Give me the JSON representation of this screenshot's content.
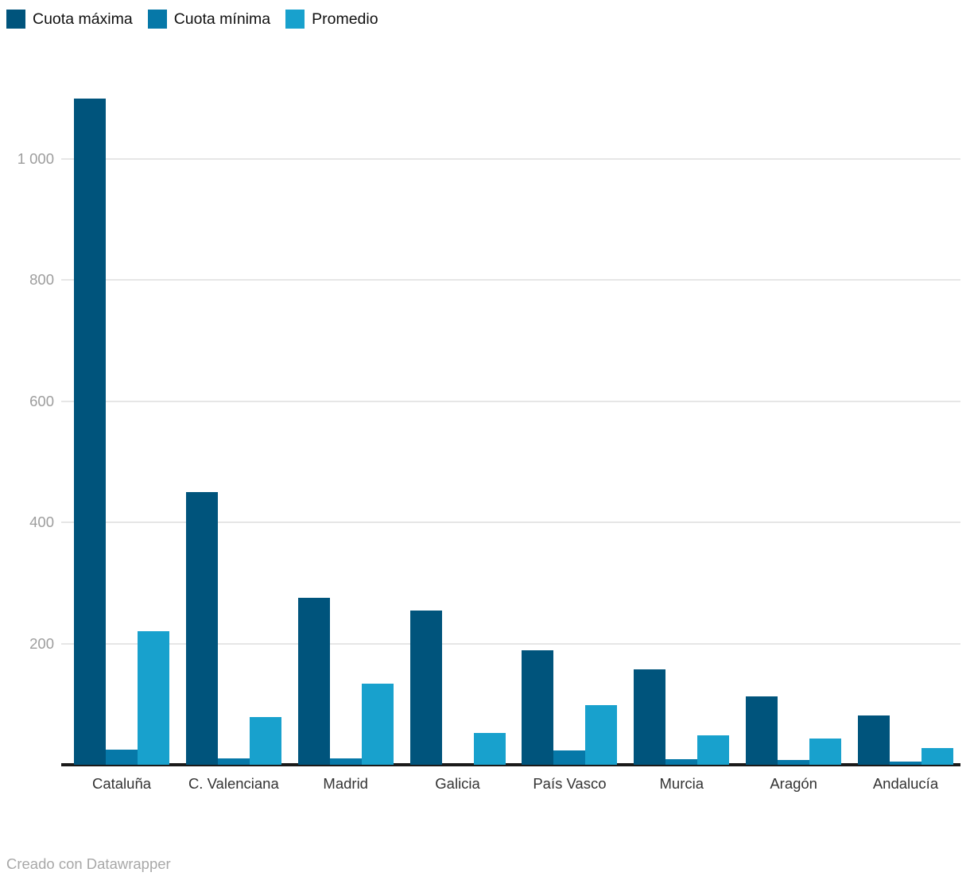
{
  "footer": {
    "credit": "Creado con Datawrapper"
  },
  "chart_data": {
    "type": "bar",
    "title": "",
    "categories": [
      "Cataluña",
      "C. Valenciana",
      "Madrid",
      "Galicia",
      "País Vasco",
      "Murcia",
      "Aragón",
      "Andalucía"
    ],
    "series": [
      {
        "name": "Cuota máxima",
        "color": "#00547c",
        "values": [
          1100,
          450,
          275,
          254,
          189,
          157,
          113,
          81
        ]
      },
      {
        "name": "Cuota mínima",
        "color": "#0678a8",
        "values": [
          25,
          10,
          10,
          0,
          24,
          9,
          8,
          5
        ]
      },
      {
        "name": "Promedio",
        "color": "#18a1cd",
        "values": [
          220,
          79,
          134,
          52,
          98,
          48,
          43,
          27
        ]
      }
    ],
    "ylim": [
      0,
      1160
    ],
    "yticks": [
      {
        "value": 200,
        "label": "200"
      },
      {
        "value": 400,
        "label": "400"
      },
      {
        "value": 600,
        "label": "600"
      },
      {
        "value": 800,
        "label": "800"
      },
      {
        "value": 1000,
        "label": "1 000"
      }
    ],
    "grid": true,
    "legend_position": "top-left",
    "axis_colors": {
      "gridline": "#e6e6e6",
      "baseline": "#1a1a1a",
      "tick_label": "#9d9d9d",
      "category_label": "#333333"
    }
  }
}
